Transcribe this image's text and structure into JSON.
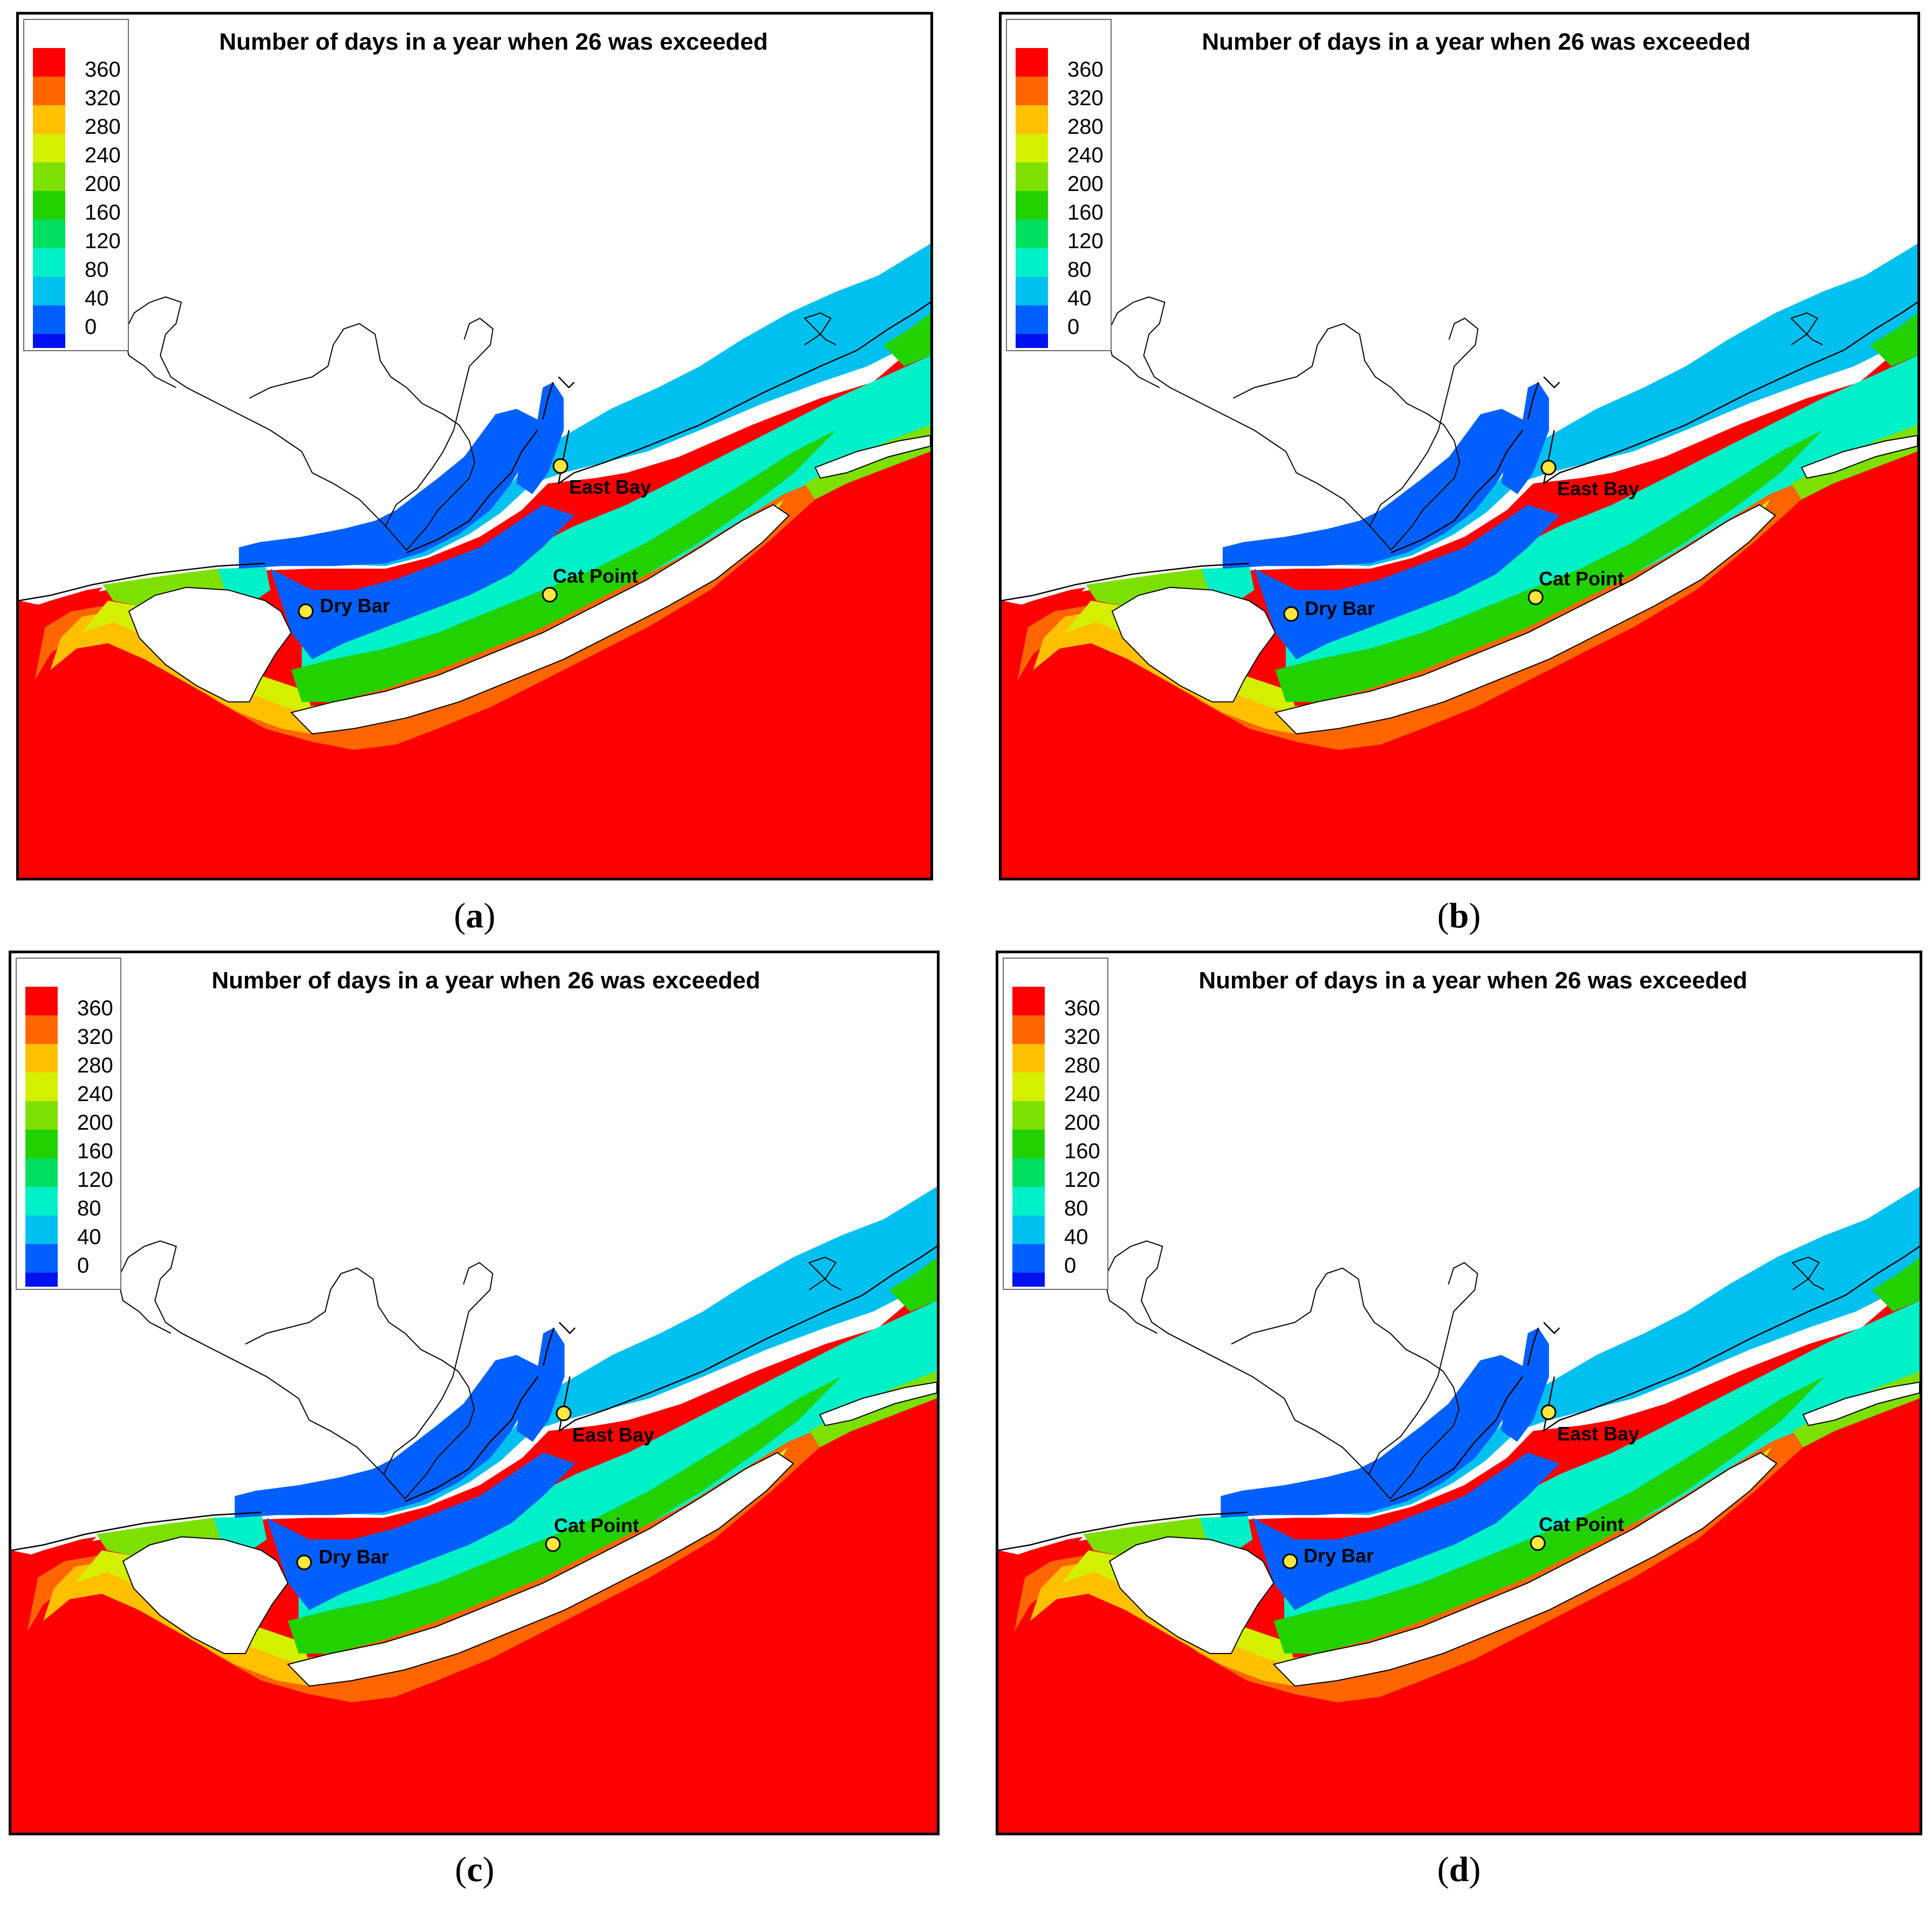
{
  "figure": {
    "legend": {
      "labels": [
        "360",
        "320",
        "280",
        "240",
        "200",
        "160",
        "120",
        "80",
        "40",
        "0"
      ],
      "colors": [
        "#ff0000",
        "#ff6600",
        "#ffc000",
        "#d4f000",
        "#7ee000",
        "#22d200",
        "#00e060",
        "#00f0c8",
        "#00c0f0",
        "#0060ff",
        "#0010f0"
      ]
    },
    "panels": [
      {
        "id": "a",
        "title": "Number of days in a year when 26 was exceeded",
        "caption_open": "(",
        "caption_letter": "a",
        "caption_close": ")",
        "sites": {
          "east_bay": "East Bay",
          "cat_point": "Cat Point",
          "dry_bar": "Dry Bar"
        }
      },
      {
        "id": "b",
        "title": "Number of days in a year when 26 was exceeded",
        "caption_open": "(",
        "caption_letter": "b",
        "caption_close": ")",
        "sites": {
          "east_bay": "East Bay",
          "cat_point": "Cat Point",
          "dry_bar": "Dry Bar"
        }
      },
      {
        "id": "c",
        "title": "Number of days in a year when 26 was exceeded",
        "caption_open": "(",
        "caption_letter": "c",
        "caption_close": ")",
        "sites": {
          "east_bay": "East Bay",
          "cat_point": "Cat Point",
          "dry_bar": "Dry Bar"
        }
      },
      {
        "id": "d",
        "title": "Number of days in a year when 26 was exceeded",
        "caption_open": "(",
        "caption_letter": "d",
        "caption_close": ")",
        "sites": {
          "east_bay": "East Bay",
          "cat_point": "Cat Point",
          "dry_bar": "Dry Bar"
        }
      }
    ]
  }
}
